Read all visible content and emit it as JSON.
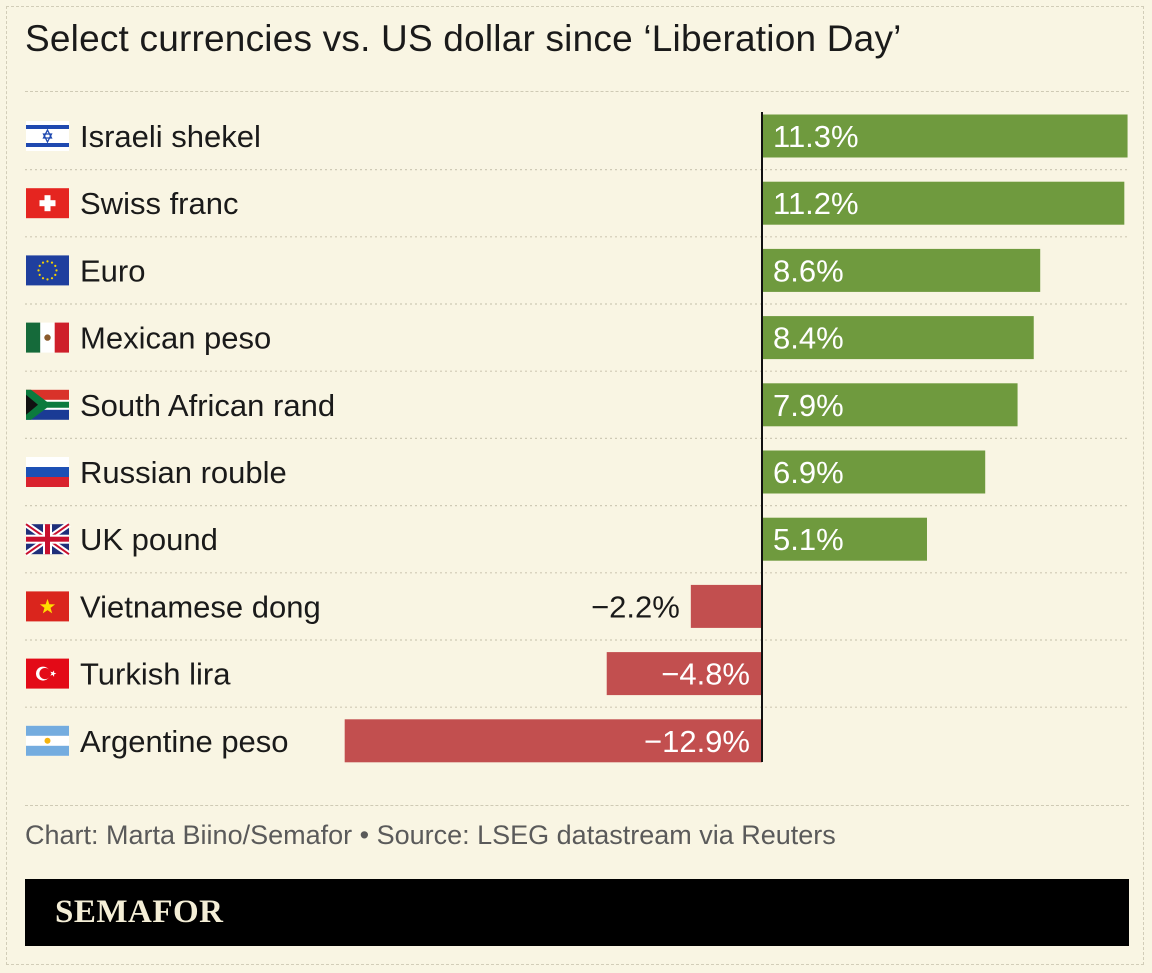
{
  "title": "Select currencies vs. US dollar since ‘Liberation Day’",
  "credit": "Chart: Marta Biino/Semafor • Source: LSEG datastream via Reuters",
  "brand": "SEMAFOR",
  "colors": {
    "positive": "#6f9a3e",
    "negative": "#c24f4f",
    "background": "#f9f5e3",
    "axis": "#111111"
  },
  "chart_data": {
    "type": "bar",
    "orientation": "horizontal",
    "title": "Select currencies vs. US dollar since ‘Liberation Day’",
    "categories": [
      "Israeli shekel",
      "Swiss franc",
      "Euro",
      "Mexican peso",
      "South African rand",
      "Russian rouble",
      "UK pound",
      "Vietnamese dong",
      "Turkish lira",
      "Argentine peso"
    ],
    "flags": [
      "israel-flag-icon",
      "switzerland-flag-icon",
      "eu-flag-icon",
      "mexico-flag-icon",
      "south-africa-flag-icon",
      "russia-flag-icon",
      "uk-flag-icon",
      "vietnam-flag-icon",
      "turkey-flag-icon",
      "argentina-flag-icon"
    ],
    "values": [
      11.3,
      11.2,
      8.6,
      8.4,
      7.9,
      6.9,
      5.1,
      -2.2,
      -4.8,
      -12.9
    ],
    "labels": [
      "11.3%",
      "11.2%",
      "8.6%",
      "8.4%",
      "7.9%",
      "6.9%",
      "5.1%",
      "−2.2%",
      "−4.8%",
      "−12.9%"
    ],
    "xlim": [
      -13.0,
      11.3
    ],
    "grid": false,
    "legend": "none"
  }
}
